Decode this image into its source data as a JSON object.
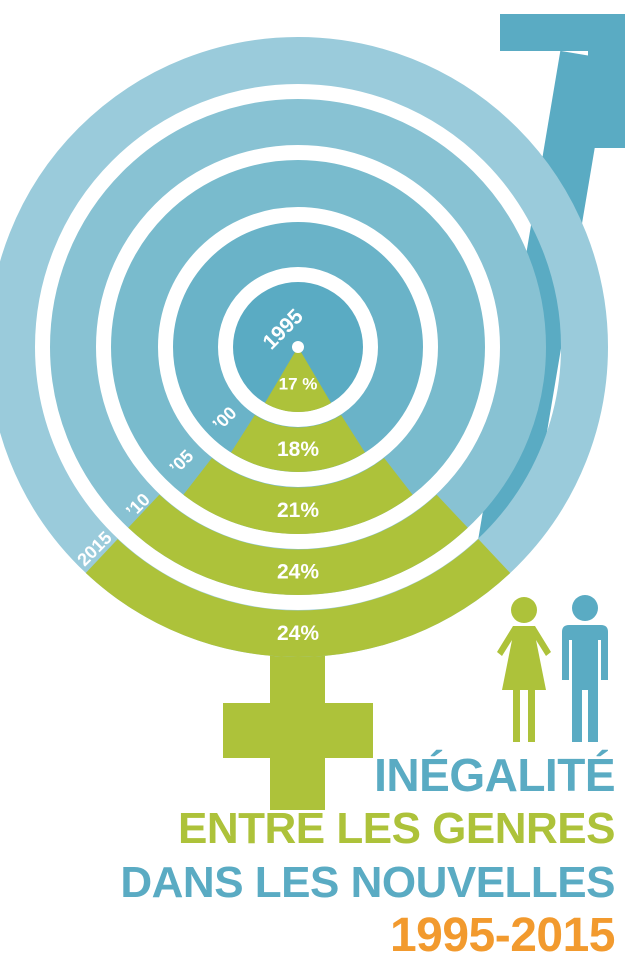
{
  "colors": {
    "male": "#5aabc3",
    "female": "#adc23a",
    "accent": "#f29a2e",
    "rings": [
      "#5aabc3",
      "#6ab3c8",
      "#79bbcd",
      "#88c2d3",
      "#9acbdb"
    ]
  },
  "icons": [
    "male-symbol-icon",
    "female-symbol-icon",
    "woman-icon",
    "man-icon"
  ],
  "title": {
    "line1": "INÉGALITÉ",
    "line2": "ENTRE LES GENRES",
    "line3": "DANS LES NOUVELLES",
    "line4": "1995-2015"
  },
  "chart_data": {
    "type": "radial",
    "categories": [
      "1995",
      "’00",
      "’05",
      "’10",
      "2015"
    ],
    "values": [
      17,
      18,
      21,
      24,
      24
    ],
    "value_labels": [
      "17 %",
      "18%",
      "21%",
      "24%",
      "24%"
    ],
    "unit": "%"
  }
}
